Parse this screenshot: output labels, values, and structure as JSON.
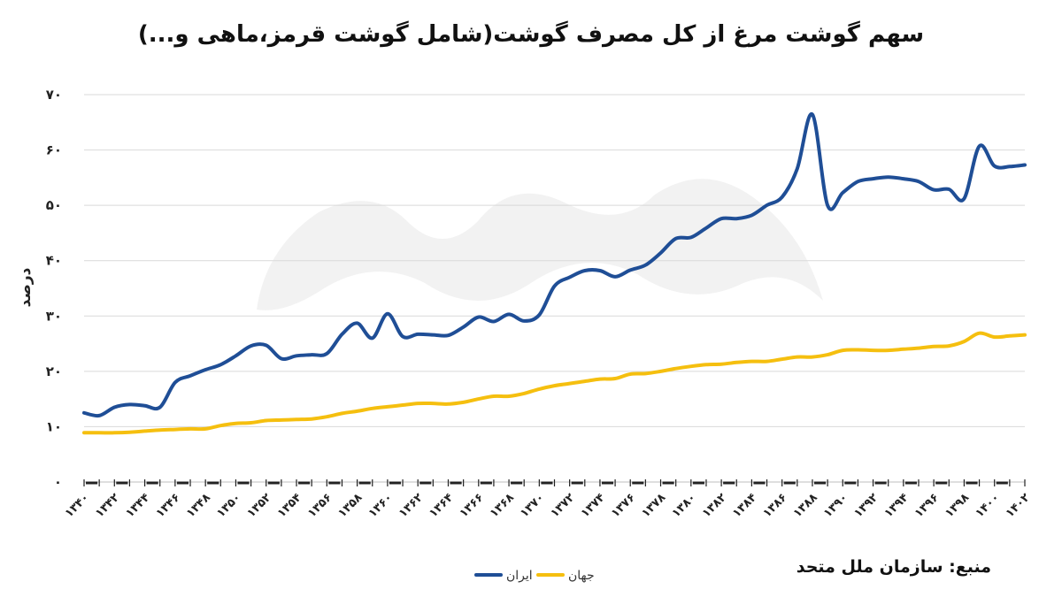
{
  "chart_data": {
    "type": "line",
    "title": "سهم گوشت مرغ از کل مصرف گوشت(شامل گوشت قرمز،ماهی و...)",
    "ylabel": "درصد",
    "xlabel": "",
    "ylim": [
      0,
      70
    ],
    "y_ticks": [
      "۰",
      "۱۰",
      "۲۰",
      "۳۰",
      "۴۰",
      "۵۰",
      "۶۰",
      "۷۰"
    ],
    "y_tick_values": [
      0,
      10,
      20,
      30,
      40,
      50,
      60,
      70
    ],
    "grid": true,
    "legend_position": "bottom",
    "x": [
      1340,
      1341,
      1342,
      1343,
      1344,
      1345,
      1346,
      1347,
      1348,
      1349,
      1350,
      1351,
      1352,
      1353,
      1354,
      1355,
      1356,
      1357,
      1358,
      1359,
      1360,
      1361,
      1362,
      1363,
      1364,
      1365,
      1366,
      1367,
      1368,
      1369,
      1370,
      1371,
      1372,
      1373,
      1374,
      1375,
      1376,
      1377,
      1378,
      1379,
      1380,
      1381,
      1382,
      1383,
      1384,
      1385,
      1386,
      1387,
      1388,
      1389,
      1390,
      1391,
      1392,
      1393,
      1394,
      1395,
      1396,
      1397,
      1398,
      1399,
      1400,
      1401,
      1402
    ],
    "x_tick_labels": [
      "۱۳۴۰",
      "۱۳۴۲",
      "۱۳۴۴",
      "۱۳۴۶",
      "۱۳۴۸",
      "۱۳۵۰",
      "۱۳۵۲",
      "۱۳۵۴",
      "۱۳۵۶",
      "۱۳۵۸",
      "۱۳۶۰",
      "۱۳۶۲",
      "۱۳۶۴",
      "۱۳۶۶",
      "۱۳۶۸",
      "۱۳۷۰",
      "۱۳۷۲",
      "۱۳۷۴",
      "۱۳۷۶",
      "۱۳۷۸",
      "۱۳۸۰",
      "۱۳۸۲",
      "۱۳۸۴",
      "۱۳۸۶",
      "۱۳۸۸",
      "۱۳۹۰",
      "۱۳۹۲",
      "۱۳۹۴",
      "۱۳۹۶",
      "۱۳۹۸",
      "۱۴۰۰",
      "۱۴۰۲"
    ],
    "series": [
      {
        "name": "ایران",
        "color": "#1f4e96",
        "values": [
          12.5,
          12,
          13.5,
          14,
          13.8,
          13.5,
          18,
          19.2,
          20.3,
          21.2,
          22.8,
          24.6,
          24.7,
          22.3,
          22.8,
          23,
          23.2,
          26.7,
          28.7,
          26,
          30.4,
          26.3,
          26.7,
          26.6,
          26.5,
          28,
          29.8,
          29,
          30.3,
          29.1,
          30.2,
          35.4,
          37,
          38.2,
          38.2,
          37.1,
          38.3,
          39.2,
          41.4,
          44,
          44.2,
          45.9,
          47.6,
          47.6,
          48.2,
          50,
          51.5,
          56.6,
          66.4,
          50,
          52.3,
          54.3,
          54.8,
          55.1,
          54.8,
          54.3,
          52.8,
          52.9,
          51.2,
          60.7,
          57.1,
          57,
          57.3
        ]
      },
      {
        "name": "جهان",
        "color": "#f5bf0f",
        "values": [
          8.9,
          8.9,
          8.9,
          9,
          9.2,
          9.4,
          9.5,
          9.6,
          9.6,
          10.2,
          10.6,
          10.7,
          11.1,
          11.2,
          11.3,
          11.4,
          11.8,
          12.4,
          12.8,
          13.3,
          13.6,
          13.9,
          14.2,
          14.2,
          14.1,
          14.4,
          15,
          15.5,
          15.5,
          16,
          16.8,
          17.4,
          17.8,
          18.2,
          18.6,
          18.7,
          19.5,
          19.6,
          20,
          20.5,
          20.9,
          21.2,
          21.3,
          21.6,
          21.8,
          21.8,
          22.2,
          22.6,
          22.6,
          23,
          23.8,
          23.9,
          23.8,
          23.8,
          24,
          24.2,
          24.5,
          24.6,
          25.4,
          26.9,
          26.2,
          26.4,
          26.6
        ]
      }
    ]
  },
  "source_text": "منبع: سازمان ملل متحد"
}
